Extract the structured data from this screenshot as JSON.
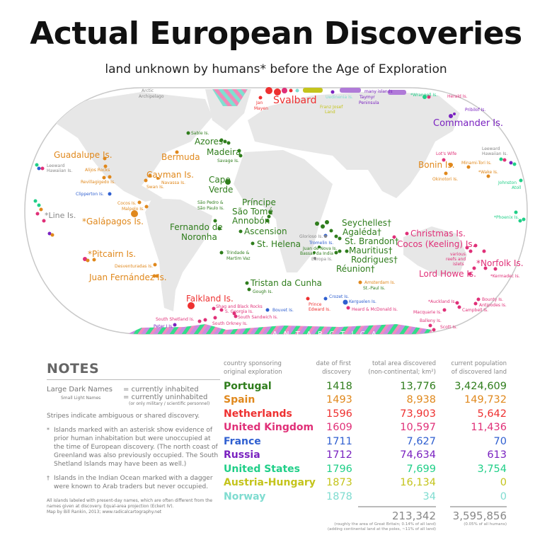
{
  "title": "Actual European Discoveries",
  "subtitle": "land unknown by humans* before the Age of Exploration",
  "colors": {
    "portugal": "#2f7d1c",
    "spain": "#e0881c",
    "netherlands": "#ee3030",
    "uk": "#e03078",
    "france": "#2f5fd0",
    "russia": "#7a22c0",
    "us": "#20cf88",
    "austria": "#c4c41c",
    "norway": "#7fdcd0",
    "none": "#888888"
  },
  "map": {
    "antarctica": "A N T A R C T I C A",
    "large_labels": [
      {
        "text": "Svalbard",
        "color": "netherlands"
      },
      {
        "text": "Commander Is.",
        "color": "russia"
      },
      {
        "text": "Azores",
        "color": "portugal"
      },
      {
        "text": "Madeira",
        "color": "portugal"
      },
      {
        "text": "Guadalupe Is.",
        "color": "spain"
      },
      {
        "text": "Bermuda",
        "color": "spain"
      },
      {
        "text": "Cayman Is.",
        "color": "spain"
      },
      {
        "text": "Cape",
        "color": "portugal"
      },
      {
        "text": "Verde",
        "color": "portugal"
      },
      {
        "text": "Bonin Is.",
        "color": "spain"
      },
      {
        "text": "*Line Is.",
        "color": "none"
      },
      {
        "text": "*Galápagos Is.",
        "color": "spain"
      },
      {
        "text": "Príncipe",
        "color": "portugal"
      },
      {
        "text": "São Tomé",
        "color": "portugal"
      },
      {
        "text": "Annobón",
        "color": "portugal"
      },
      {
        "text": "Fernando de",
        "color": "portugal"
      },
      {
        "text": "Noronha",
        "color": "portugal"
      },
      {
        "text": "Ascension",
        "color": "portugal"
      },
      {
        "text": "St. Helena",
        "color": "portugal"
      },
      {
        "text": "Seychelles†",
        "color": "portugal"
      },
      {
        "text": "Agaléda†",
        "color": "portugal"
      },
      {
        "text": "St. Brandon†",
        "color": "portugal"
      },
      {
        "text": "Mauritius†",
        "color": "portugal"
      },
      {
        "text": "Rodrigues†",
        "color": "portugal"
      },
      {
        "text": "Réunion†",
        "color": "portugal"
      },
      {
        "text": "Christmas Is.",
        "color": "uk"
      },
      {
        "text": "Cocos (Keeling) Is.",
        "color": "uk"
      },
      {
        "text": "*Pitcairn Is.",
        "color": "spain"
      },
      {
        "text": "Juan Fernández Is.",
        "color": "spain"
      },
      {
        "text": "*Norfolk Is.",
        "color": "uk"
      },
      {
        "text": "Lord Howe Is.",
        "color": "uk"
      },
      {
        "text": "Tristan da Cunha",
        "color": "portugal"
      },
      {
        "text": "Falkland Is.",
        "color": "netherlands"
      }
    ],
    "small_labels": [
      {
        "text": "Arctic",
        "color": "none"
      },
      {
        "text": "Archipelago",
        "color": "none"
      },
      {
        "text": "Jan",
        "color": "netherlands"
      },
      {
        "text": "Mayen",
        "color": "netherlands"
      },
      {
        "text": "Franz Josef",
        "color": "austria"
      },
      {
        "text": "Land",
        "color": "austria"
      },
      {
        "text": "Uedinenia Is.",
        "color": "norway"
      },
      {
        "text": "many islands",
        "color": "russia"
      },
      {
        "text": "Taymyr",
        "color": "russia"
      },
      {
        "text": "Peninsula",
        "color": "russia"
      },
      {
        "text": "*Wrangell Is.",
        "color": "us"
      },
      {
        "text": "Herald Is.",
        "color": "uk"
      },
      {
        "text": "Pribilof Is.",
        "color": "russia"
      },
      {
        "text": "Sable Is.",
        "color": "portugal"
      },
      {
        "text": "Savage Is.",
        "color": "portugal"
      },
      {
        "text": "Leeward",
        "color": "none"
      },
      {
        "text": "Hawaiian Is.",
        "color": "none"
      },
      {
        "text": "Leeward",
        "color": "none"
      },
      {
        "text": "Hawaiian Is.",
        "color": "none"
      },
      {
        "text": "Alijos Rocks",
        "color": "spain"
      },
      {
        "text": "Revillagigedo Is.",
        "color": "spain"
      },
      {
        "text": "Navassa Is.",
        "color": "spain"
      },
      {
        "text": "Swan Is.",
        "color": "spain"
      },
      {
        "text": "Clipperton Is.",
        "color": "france"
      },
      {
        "text": "Lot's Wife",
        "color": "uk"
      },
      {
        "text": "Minami-Tori Is.",
        "color": "spain"
      },
      {
        "text": "*Wake Is.",
        "color": "spain"
      },
      {
        "text": "Okinotori Is.",
        "color": "spain"
      },
      {
        "text": "Johnston",
        "color": "us"
      },
      {
        "text": "Atoll",
        "color": "us"
      },
      {
        "text": "Cocos Is.",
        "color": "spain"
      },
      {
        "text": "Malpelo Is.",
        "color": "spain"
      },
      {
        "text": "São Pedro &",
        "color": "portugal"
      },
      {
        "text": "São Paulo Is.",
        "color": "portugal"
      },
      {
        "text": "*Phoenix Is.",
        "color": "us"
      },
      {
        "text": "Glorioso Is.",
        "color": "none"
      },
      {
        "text": "Tromelin Is.",
        "color": "france"
      },
      {
        "text": "Juan de Nova Is.",
        "color": "portugal"
      },
      {
        "text": "Bassas da India",
        "color": "portugal"
      },
      {
        "text": "Europa Is.",
        "color": "none"
      },
      {
        "text": "Trindade &",
        "color": "portugal"
      },
      {
        "text": "Martim Vaz",
        "color": "portugal"
      },
      {
        "text": "Desventuradas Is.",
        "color": "spain"
      },
      {
        "text": "various",
        "color": "uk"
      },
      {
        "text": "reefs and",
        "color": "uk"
      },
      {
        "text": "islets",
        "color": "uk"
      },
      {
        "text": "*Kermadec Is.",
        "color": "uk"
      },
      {
        "text": "Amsterdam Is.",
        "color": "spain"
      },
      {
        "text": "St.-Paul Is.",
        "color": "portugal"
      },
      {
        "text": "Gough Is.",
        "color": "portugal"
      },
      {
        "text": "Crozet Is.",
        "color": "france"
      },
      {
        "text": "Prince",
        "color": "netherlands"
      },
      {
        "text": "Edward Is.",
        "color": "netherlands"
      },
      {
        "text": "Kerguelen Is.",
        "color": "france"
      },
      {
        "text": "Heard & McDonald Is.",
        "color": "uk"
      },
      {
        "text": "Bouvet Is.",
        "color": "france"
      },
      {
        "text": "Shag and Black Rocks",
        "color": "uk"
      },
      {
        "text": "S. Georgia Is.",
        "color": "uk"
      },
      {
        "text": "South Sandwich Is.",
        "color": "uk"
      },
      {
        "text": "South Orkney Is.",
        "color": "uk"
      },
      {
        "text": "South Shetland Is.",
        "color": "uk"
      },
      {
        "text": "Peter I Is.",
        "color": "russia"
      },
      {
        "text": "*Auckland Is.",
        "color": "uk"
      },
      {
        "text": "Bounty Is.",
        "color": "uk"
      },
      {
        "text": "Antipodes Is.",
        "color": "uk"
      },
      {
        "text": "Campbell Is.",
        "color": "uk"
      },
      {
        "text": "Macquarie Is.",
        "color": "uk"
      },
      {
        "text": "Balleny Is.",
        "color": "uk"
      },
      {
        "text": "Scott Is.",
        "color": "uk"
      }
    ]
  },
  "notes": {
    "heading": "NOTES",
    "large_key": "Large Dark Names",
    "large_value": "= currently inhabited",
    "small_key": "Small Light Names",
    "small_value": "= currently uninhabited",
    "small_sub": "(or only military / scientific personnel)",
    "stripes": "Stripes indicate ambiguous or shared discovery.",
    "asterisk_mark": "*",
    "asterisk": "Islands marked with an asterisk show evidence of prior human inhabitation but were unoccupied at the time of European discovery. (The north coast of Greenland was also previously occupied. The South Shetland Islands may have been as well.)",
    "dagger_mark": "†",
    "dagger": "Islands in the Indian Ocean marked with a dagger were known to Arab traders but never occupied.",
    "credit1": "All islands labeled with present-day names, which are often different from the names given at discovery. Equal-area projection (Eckert IV).",
    "credit2": "Map by Bill Rankin, 2013; www.radicalcartography.net"
  },
  "table": {
    "headers": [
      [
        "country sponsoring",
        "original exploration"
      ],
      [
        "date of first",
        "discovery"
      ],
      [
        "total area discovered",
        "(non-continental; km²)"
      ],
      [
        "current population",
        "of discovered land"
      ]
    ],
    "rows": [
      {
        "country": "Portugal",
        "date": "1418",
        "area": "13,776",
        "population": "3,424,609",
        "color": "portugal"
      },
      {
        "country": "Spain",
        "date": "1493",
        "area": "8,938",
        "population": "149,732",
        "color": "spain"
      },
      {
        "country": "Netherlands",
        "date": "1596",
        "area": "73,903",
        "population": "5,642",
        "color": "netherlands"
      },
      {
        "country": "United Kingdom",
        "date": "1609",
        "area": "10,597",
        "population": "11,436",
        "color": "uk"
      },
      {
        "country": "France",
        "date": "1711",
        "area": "7,627",
        "population": "70",
        "color": "france"
      },
      {
        "country": "Russia",
        "date": "1712",
        "area": "74,634",
        "population": "613",
        "color": "russia"
      },
      {
        "country": "United States",
        "date": "1796",
        "area": "7,699",
        "population": "3,754",
        "color": "us"
      },
      {
        "country": "Austria-Hungary",
        "date": "1873",
        "area": "16,134",
        "population": "0",
        "color": "austria"
      },
      {
        "country": "Norway",
        "date": "1878",
        "area": "34",
        "population": "0",
        "color": "norway"
      }
    ],
    "total_area": "213,342",
    "total_population": "3,595,856",
    "area_note1": "(roughly the area of Great Britain; 0.14% of all land)",
    "area_note2": "(adding continental land at the poles, ~11% of all land)",
    "population_note": "(0.05% of all humans)"
  }
}
